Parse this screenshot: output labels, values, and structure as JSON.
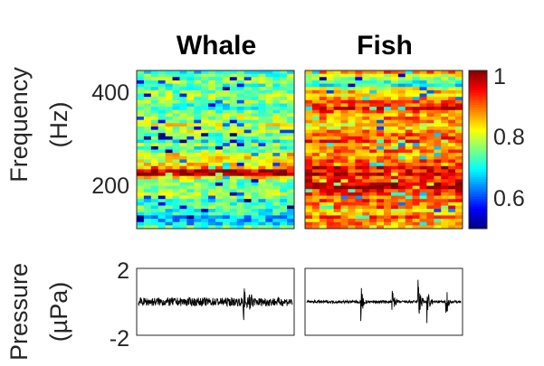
{
  "chart_data": [
    {
      "type": "heatmap",
      "title": "Whale",
      "ylabel": [
        "Frequency",
        "(Hz)"
      ],
      "yticks": [
        200,
        400
      ],
      "ylim": [
        100,
        450
      ],
      "clim": [
        0.5,
        1.0
      ],
      "colormap": "jet",
      "bands": [
        {
          "hz": 225,
          "value": 0.98
        },
        {
          "hz": 260,
          "value": 0.82
        },
        {
          "hz": 330,
          "value": 0.8
        },
        {
          "hz": 120,
          "value": 0.62
        }
      ],
      "base_value": 0.73
    },
    {
      "type": "heatmap",
      "title": "Fish",
      "yticks": [
        200,
        400
      ],
      "ylim": [
        100,
        450
      ],
      "clim": [
        0.5,
        1.0
      ],
      "colormap": "jet",
      "bands": [
        {
          "hz": 190,
          "value": 0.98
        },
        {
          "hz": 225,
          "value": 0.95
        },
        {
          "hz": 300,
          "value": 0.92
        },
        {
          "hz": 370,
          "value": 0.92
        },
        {
          "hz": 420,
          "value": 0.72
        }
      ],
      "base_value": 0.86
    },
    {
      "type": "colorbar",
      "ticks": [
        0.6,
        0.8,
        1
      ],
      "tick_labels": [
        "0.6",
        "0.8",
        "1"
      ],
      "range": [
        0.5,
        1.0
      ]
    },
    {
      "type": "line",
      "title": "",
      "ylabel": [
        "Pressure",
        "(µPa)"
      ],
      "yticks": [
        "2",
        "-2"
      ],
      "ylim": [
        -2,
        2
      ],
      "series_name": "whale-pressure",
      "noise_level": 0.25,
      "events": [
        {
          "t": 0.68,
          "amp": 1.4
        },
        {
          "t": 0.72,
          "amp": 0.9
        }
      ]
    },
    {
      "type": "line",
      "title": "",
      "ylim": [
        -2,
        2
      ],
      "series_name": "fish-pressure",
      "noise_level": 0.08,
      "events": [
        {
          "t": 0.35,
          "amp": 1.3
        },
        {
          "t": 0.55,
          "amp": 1.1
        },
        {
          "t": 0.72,
          "amp": 1.9
        },
        {
          "t": 0.78,
          "amp": 1.5
        },
        {
          "t": 0.9,
          "amp": 1.3
        }
      ]
    }
  ],
  "colors": {
    "axis": "#262626",
    "signal": "#000000"
  }
}
